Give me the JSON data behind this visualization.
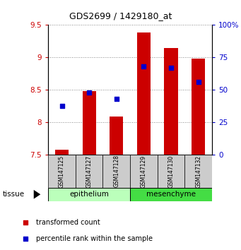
{
  "title": "GDS2699 / 1429180_at",
  "samples": [
    "GSM147125",
    "GSM147127",
    "GSM147128",
    "GSM147129",
    "GSM147130",
    "GSM147132"
  ],
  "bar_values": [
    7.58,
    8.48,
    8.09,
    9.38,
    9.15,
    8.98
  ],
  "percentile_values": [
    38.0,
    48.0,
    43.0,
    68.0,
    67.0,
    56.0
  ],
  "bar_bottom": 7.5,
  "ylim_left": [
    7.5,
    9.5
  ],
  "ylim_right": [
    0,
    100
  ],
  "yticks_left": [
    7.5,
    8.0,
    8.5,
    9.0,
    9.5
  ],
  "ytick_labels_left": [
    "7.5",
    "8",
    "8.5",
    "9",
    "9.5"
  ],
  "yticks_right": [
    0,
    25,
    50,
    75,
    100
  ],
  "ytick_labels_right": [
    "0",
    "25",
    "50",
    "75",
    "100%"
  ],
  "bar_color": "#cc0000",
  "percentile_color": "#0000cc",
  "tissue_groups": [
    {
      "label": "epithelium",
      "indices": [
        0,
        1,
        2
      ],
      "color": "#bbffbb"
    },
    {
      "label": "mesenchyme",
      "indices": [
        3,
        4,
        5
      ],
      "color": "#44dd44"
    }
  ],
  "tissue_label": "tissue",
  "legend_items": [
    {
      "label": "transformed count",
      "color": "#cc0000"
    },
    {
      "label": "percentile rank within the sample",
      "color": "#0000cc"
    }
  ],
  "grid_color": "#888888",
  "left_tick_color": "#cc0000",
  "right_tick_color": "#0000cc",
  "bar_width": 0.5,
  "sample_box_color": "#cccccc",
  "figsize": [
    3.41,
    3.54
  ],
  "dpi": 100
}
